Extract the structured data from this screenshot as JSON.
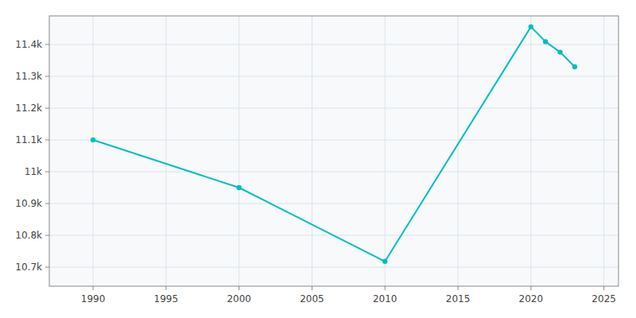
{
  "chart_data": {
    "type": "line",
    "x": [
      1990,
      2000,
      2010,
      2020,
      2021,
      2022,
      2023
    ],
    "values": [
      11100,
      10950,
      10718,
      11456,
      11409,
      11376,
      11330
    ],
    "color": "#00BFBF",
    "marker": "circle",
    "xlim": [
      1987,
      2026
    ],
    "ylim": [
      10640,
      11490
    ],
    "xticks": [
      1990,
      1995,
      2000,
      2005,
      2010,
      2015,
      2020,
      2025
    ],
    "yticks": [
      {
        "value": 10700,
        "label": "10.7k"
      },
      {
        "value": 10800,
        "label": "10.8k"
      },
      {
        "value": 10900,
        "label": "10.9k"
      },
      {
        "value": 11000,
        "label": "11k"
      },
      {
        "value": 11100,
        "label": "11.1k"
      },
      {
        "value": 11200,
        "label": "11.2k"
      },
      {
        "value": 11300,
        "label": "11.3k"
      },
      {
        "value": 11400,
        "label": "11.4k"
      }
    ],
    "grid": true
  }
}
